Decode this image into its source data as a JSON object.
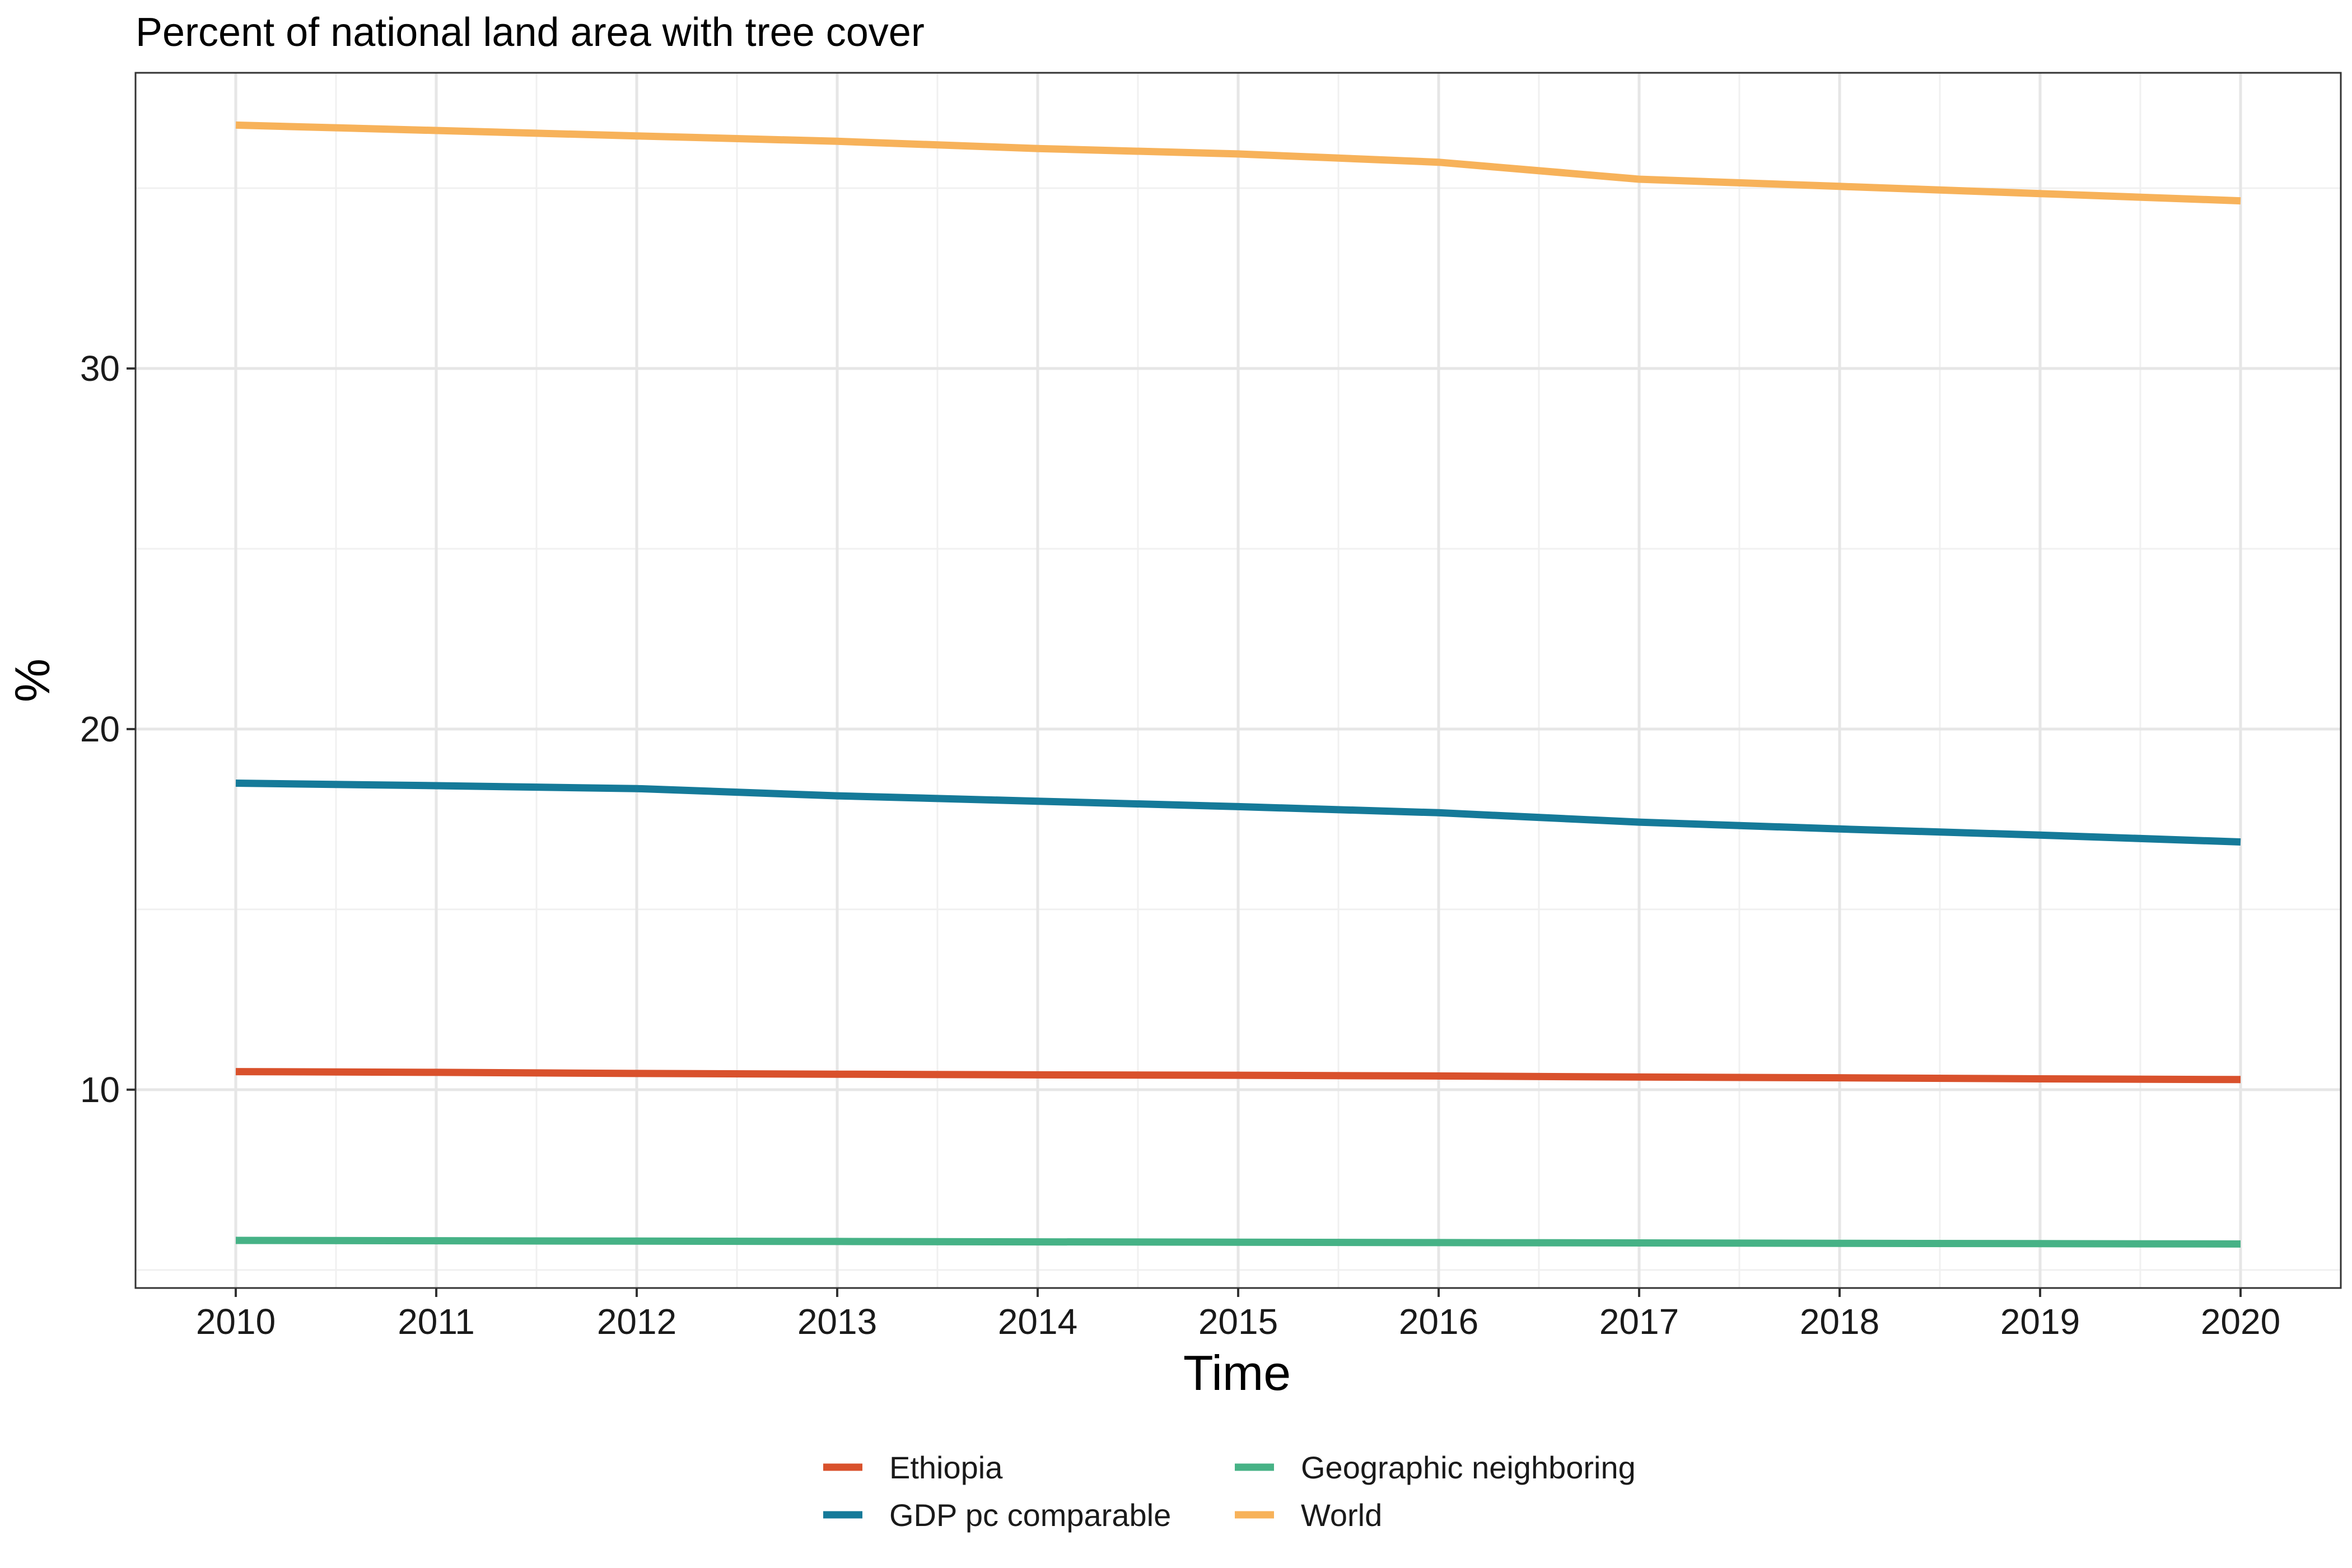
{
  "chart_data": {
    "type": "line",
    "title": "Percent of national land area with tree cover",
    "xlabel": "Time",
    "ylabel": "%",
    "x": [
      2010,
      2011,
      2012,
      2013,
      2014,
      2015,
      2016,
      2017,
      2018,
      2019,
      2020
    ],
    "xlim": [
      2009.5,
      2020.5
    ],
    "ylim": [
      4.5,
      38.2
    ],
    "yticks": [
      10,
      20,
      30
    ],
    "grid": true,
    "legend_position": "bottom",
    "series": [
      {
        "name": "Ethiopia",
        "color": "#d9512c",
        "values": [
          10.5,
          10.48,
          10.45,
          10.43,
          10.41,
          10.4,
          10.38,
          10.35,
          10.33,
          10.3,
          10.28
        ]
      },
      {
        "name": "GDP pc comparable",
        "color": "#157a99",
        "values": [
          18.5,
          18.43,
          18.35,
          18.15,
          18.0,
          17.85,
          17.68,
          17.42,
          17.23,
          17.06,
          16.87
        ]
      },
      {
        "name": "Geographic neighboring",
        "color": "#46b286",
        "values": [
          5.82,
          5.81,
          5.8,
          5.79,
          5.78,
          5.77,
          5.76,
          5.75,
          5.74,
          5.73,
          5.72
        ]
      },
      {
        "name": "World",
        "color": "#f7b25a",
        "values": [
          36.75,
          36.6,
          36.45,
          36.3,
          36.1,
          35.95,
          35.72,
          35.25,
          35.05,
          34.85,
          34.65
        ]
      }
    ]
  }
}
